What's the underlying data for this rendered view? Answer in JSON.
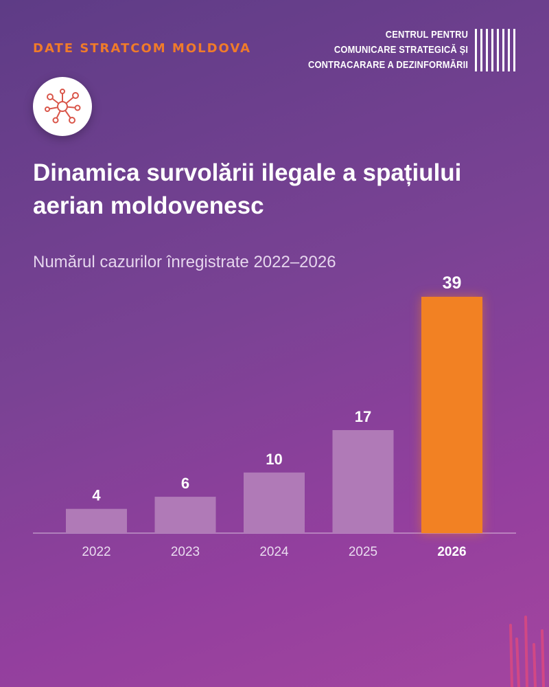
{
  "kicker": "DATE STRATCOM MOLDOVA",
  "org_lines": [
    "CENTRUL PENTRU",
    "COMUNICARE STRATEGICĂ ȘI",
    "CONTRACARARE A DEZINFORMĂRII"
  ],
  "title": "Dinamica survolării ilegale a spațiului aerian moldovenesc",
  "subtitle": "Numărul cazurilor înregistrate 2022–2026",
  "icons": {
    "badge": "network-icon",
    "logo": "barcode-logo"
  },
  "colors": {
    "accent": "#f07b2a",
    "bar": "#b07ab7",
    "highlight_bar": "#f28123"
  },
  "chart_data": {
    "type": "bar",
    "categories": [
      "2022",
      "2023",
      "2024",
      "2025",
      "2026"
    ],
    "values": [
      4,
      6,
      10,
      17,
      39
    ],
    "highlight_index": 4,
    "ylim": [
      0,
      39
    ],
    "grid": false,
    "data_labels": true
  }
}
